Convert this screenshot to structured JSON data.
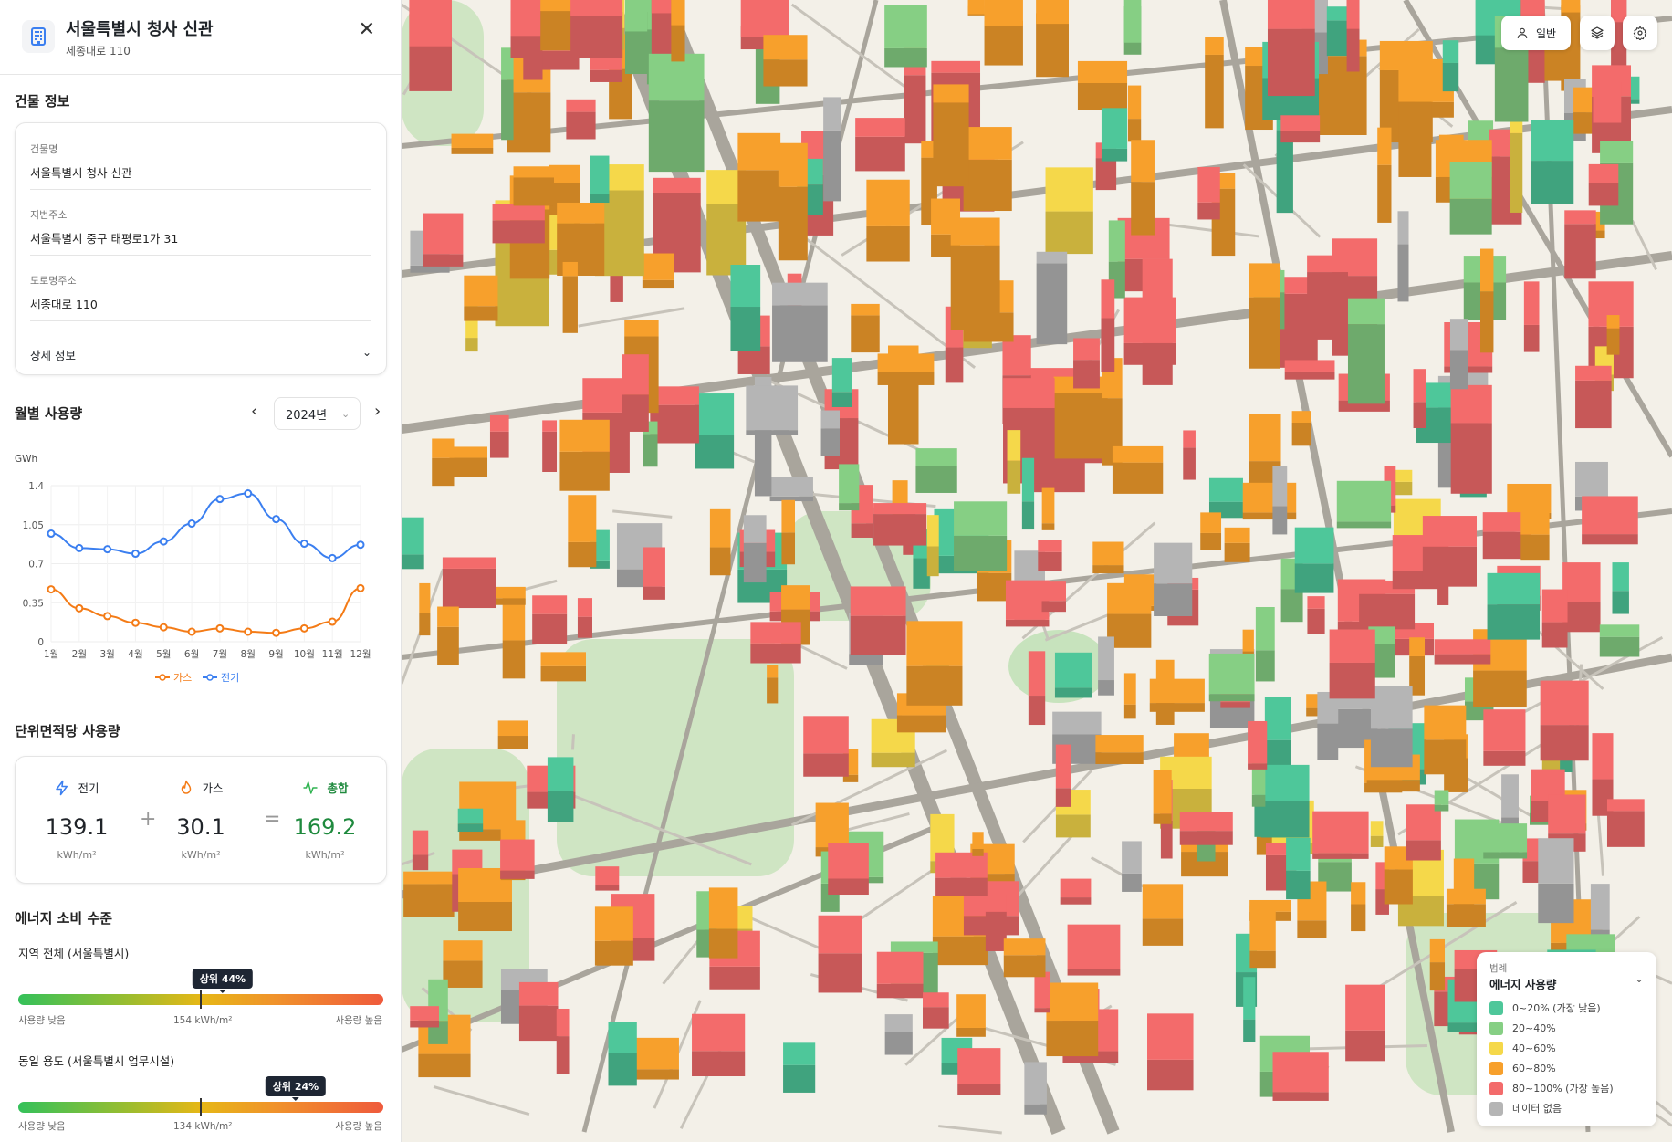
{
  "header": {
    "title": "서울특별시 청사 신관",
    "subtitle": "세종대로 110",
    "icon": "building-icon",
    "close_icon": "close-icon"
  },
  "building_info": {
    "title": "건물 정보",
    "fields": [
      {
        "label": "건물명",
        "value": "서울특별시 청사 신관"
      },
      {
        "label": "지번주소",
        "value": "서울특별시 중구 태평로1가 31"
      },
      {
        "label": "도로명주소",
        "value": "세종대로 110"
      }
    ],
    "details_label": "상세 정보"
  },
  "monthly": {
    "title": "월별 사용량",
    "year": "2024년",
    "prev": "‹",
    "next": "›"
  },
  "chart_data": {
    "type": "line",
    "ylabel": "GWh",
    "ylim": [
      0,
      1.4
    ],
    "yticks": [
      "0",
      "0.35",
      "0.7",
      "1.05",
      "1.4"
    ],
    "grid": true,
    "legend_position": "bottom",
    "categories": [
      "1월",
      "2월",
      "3월",
      "4월",
      "5월",
      "6월",
      "7월",
      "8월",
      "9월",
      "10월",
      "11월",
      "12월"
    ],
    "series": [
      {
        "name": "가스",
        "color": "#f47b16",
        "values": [
          0.47,
          0.3,
          0.23,
          0.17,
          0.13,
          0.09,
          0.12,
          0.09,
          0.08,
          0.12,
          0.18,
          0.48
        ]
      },
      {
        "name": "전기",
        "color": "#3b7ff0",
        "values": [
          0.97,
          0.84,
          0.83,
          0.79,
          0.9,
          1.06,
          1.28,
          1.33,
          1.1,
          0.88,
          0.75,
          0.87
        ]
      }
    ]
  },
  "per_area": {
    "title": "단위면적당 사용량",
    "plus": "+",
    "equals": "=",
    "items": [
      {
        "label": "전기",
        "value": "139.1",
        "unit": "kWh/m²",
        "icon": "lightning-icon",
        "color": "#3b7ff0"
      },
      {
        "label": "가스",
        "value": "30.1",
        "unit": "kWh/m²",
        "icon": "flame-icon",
        "color": "#f47b16"
      },
      {
        "label": "총합",
        "value": "169.2",
        "unit": "kWh/m²",
        "icon": "pulse-icon",
        "color": "#1f8a3e"
      }
    ]
  },
  "energy_level": {
    "title": "에너지 소비 수준",
    "bars": [
      {
        "label": "지역 전체 (서울특별시)",
        "badge": "상위 44%",
        "rank_percent": 56,
        "avg": "154 kWh/m²",
        "low": "사용량 낮음",
        "high": "사용량 높음"
      },
      {
        "label": "동일 용도 (서울특별시 업무시설)",
        "badge": "상위 24%",
        "rank_percent": 76,
        "avg": "134 kWh/m²",
        "low": "사용량 낮음",
        "high": "사용량 높음"
      }
    ]
  },
  "map_controls": {
    "mode_label": "일반",
    "mode_icon": "user-icon",
    "layers_icon": "layers-icon",
    "settings_icon": "gear-icon"
  },
  "legend": {
    "caption": "범례",
    "title": "에너지 사용량",
    "items": [
      {
        "label": "0~20% (가장 낮음)",
        "color": "#4ec79a"
      },
      {
        "label": "20~40%",
        "color": "#86cf84"
      },
      {
        "label": "40~60%",
        "color": "#f5d84a"
      },
      {
        "label": "60~80%",
        "color": "#f7a02c"
      },
      {
        "label": "80~100% (가장 높음)",
        "color": "#f36b6b"
      },
      {
        "label": "데이터 없음",
        "color": "#b5b5b5"
      }
    ]
  }
}
